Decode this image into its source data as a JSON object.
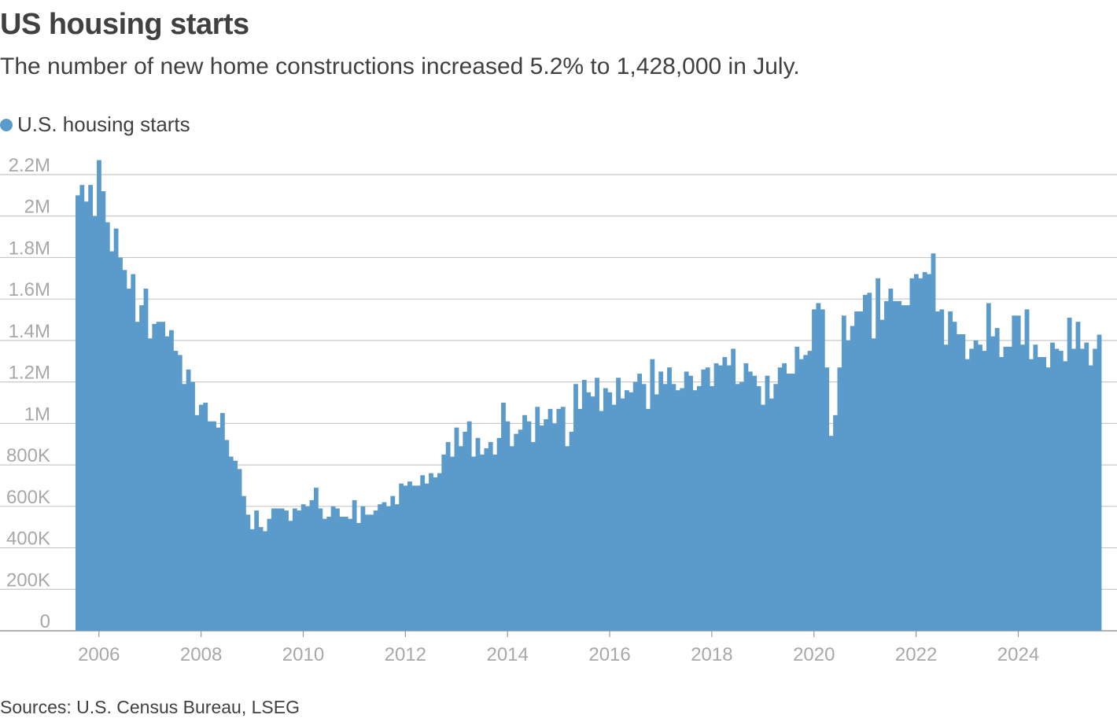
{
  "title": "US housing starts",
  "subtitle": "The number of new home constructions increased 5.2% to 1,428,000 in July.",
  "legend": {
    "label": "U.S. housing starts",
    "color": "#5a9bcb"
  },
  "source": "Sources: U.S. Census Bureau, LSEG",
  "chart_data": {
    "type": "bar",
    "series_name": "U.S. housing starts",
    "color": "#5a9bcb",
    "start": "2005-08",
    "end": "2025-07",
    "ylim": [
      0,
      2200000
    ],
    "yticks": [
      {
        "value": 0,
        "label": "0"
      },
      {
        "value": 200000,
        "label": "200K"
      },
      {
        "value": 400000,
        "label": "400K"
      },
      {
        "value": 600000,
        "label": "600K"
      },
      {
        "value": 800000,
        "label": "800K"
      },
      {
        "value": 1000000,
        "label": "1M"
      },
      {
        "value": 1200000,
        "label": "1.2M"
      },
      {
        "value": 1400000,
        "label": "1.4M"
      },
      {
        "value": 1600000,
        "label": "1.6M"
      },
      {
        "value": 1800000,
        "label": "1.8M"
      },
      {
        "value": 2000000,
        "label": "2M"
      },
      {
        "value": 2200000,
        "label": "2.2M"
      }
    ],
    "xticks": [
      {
        "index": 5,
        "label": "2006"
      },
      {
        "index": 29,
        "label": "2008"
      },
      {
        "index": 53,
        "label": "2010"
      },
      {
        "index": 77,
        "label": "2012"
      },
      {
        "index": 101,
        "label": "2014"
      },
      {
        "index": 125,
        "label": "2016"
      },
      {
        "index": 149,
        "label": "2018"
      },
      {
        "index": 173,
        "label": "2020"
      },
      {
        "index": 197,
        "label": "2022"
      },
      {
        "index": 221,
        "label": "2024"
      }
    ],
    "values": [
      2100000,
      2150000,
      2070000,
      2150000,
      2000000,
      2270000,
      2120000,
      1970000,
      1830000,
      1940000,
      1800000,
      1740000,
      1650000,
      1720000,
      1490000,
      1570000,
      1650000,
      1410000,
      1480000,
      1490000,
      1490000,
      1420000,
      1450000,
      1350000,
      1330000,
      1190000,
      1260000,
      1200000,
      1040000,
      1090000,
      1100000,
      1010000,
      1010000,
      980000,
      1050000,
      920000,
      840000,
      820000,
      780000,
      650000,
      560000,
      490000,
      580000,
      500000,
      480000,
      540000,
      590000,
      590000,
      590000,
      580000,
      530000,
      590000,
      580000,
      610000,
      600000,
      630000,
      690000,
      590000,
      540000,
      550000,
      600000,
      590000,
      550000,
      550000,
      540000,
      630000,
      520000,
      600000,
      560000,
      560000,
      580000,
      610000,
      620000,
      600000,
      650000,
      610000,
      710000,
      700000,
      720000,
      700000,
      700000,
      750000,
      710000,
      760000,
      740000,
      760000,
      850000,
      910000,
      840000,
      980000,
      890000,
      960000,
      1010000,
      840000,
      930000,
      850000,
      880000,
      910000,
      850000,
      930000,
      1100000,
      1010000,
      890000,
      950000,
      970000,
      1040000,
      1010000,
      910000,
      1080000,
      990000,
      1020000,
      1070000,
      1000000,
      1070000,
      1080000,
      890000,
      960000,
      1190000,
      1070000,
      1210000,
      1150000,
      1130000,
      1220000,
      1060000,
      1170000,
      1150000,
      1090000,
      1220000,
      1120000,
      1160000,
      1150000,
      1200000,
      1240000,
      1190000,
      1070000,
      1310000,
      1140000,
      1250000,
      1190000,
      1270000,
      1190000,
      1160000,
      1170000,
      1250000,
      1230000,
      1160000,
      1180000,
      1260000,
      1270000,
      1180000,
      1290000,
      1280000,
      1320000,
      1280000,
      1360000,
      1190000,
      1200000,
      1290000,
      1250000,
      1230000,
      1180000,
      1090000,
      1230000,
      1120000,
      1190000,
      1270000,
      1290000,
      1240000,
      1240000,
      1370000,
      1310000,
      1330000,
      1350000,
      1550000,
      1580000,
      1550000,
      1270000,
      940000,
      1040000,
      1270000,
      1520000,
      1400000,
      1470000,
      1540000,
      1540000,
      1620000,
      1630000,
      1410000,
      1700000,
      1500000,
      1590000,
      1650000,
      1590000,
      1590000,
      1570000,
      1570000,
      1700000,
      1720000,
      1700000,
      1730000,
      1720000,
      1820000,
      1540000,
      1550000,
      1380000,
      1540000,
      1490000,
      1430000,
      1430000,
      1310000,
      1360000,
      1400000,
      1380000,
      1350000,
      1580000,
      1420000,
      1460000,
      1320000,
      1370000,
      1370000,
      1520000,
      1520000,
      1380000,
      1550000,
      1310000,
      1380000,
      1320000,
      1320000,
      1270000,
      1390000,
      1360000,
      1350000,
      1300000,
      1510000,
      1360000,
      1490000,
      1360000,
      1390000,
      1280000,
      1360000,
      1428000
    ]
  }
}
